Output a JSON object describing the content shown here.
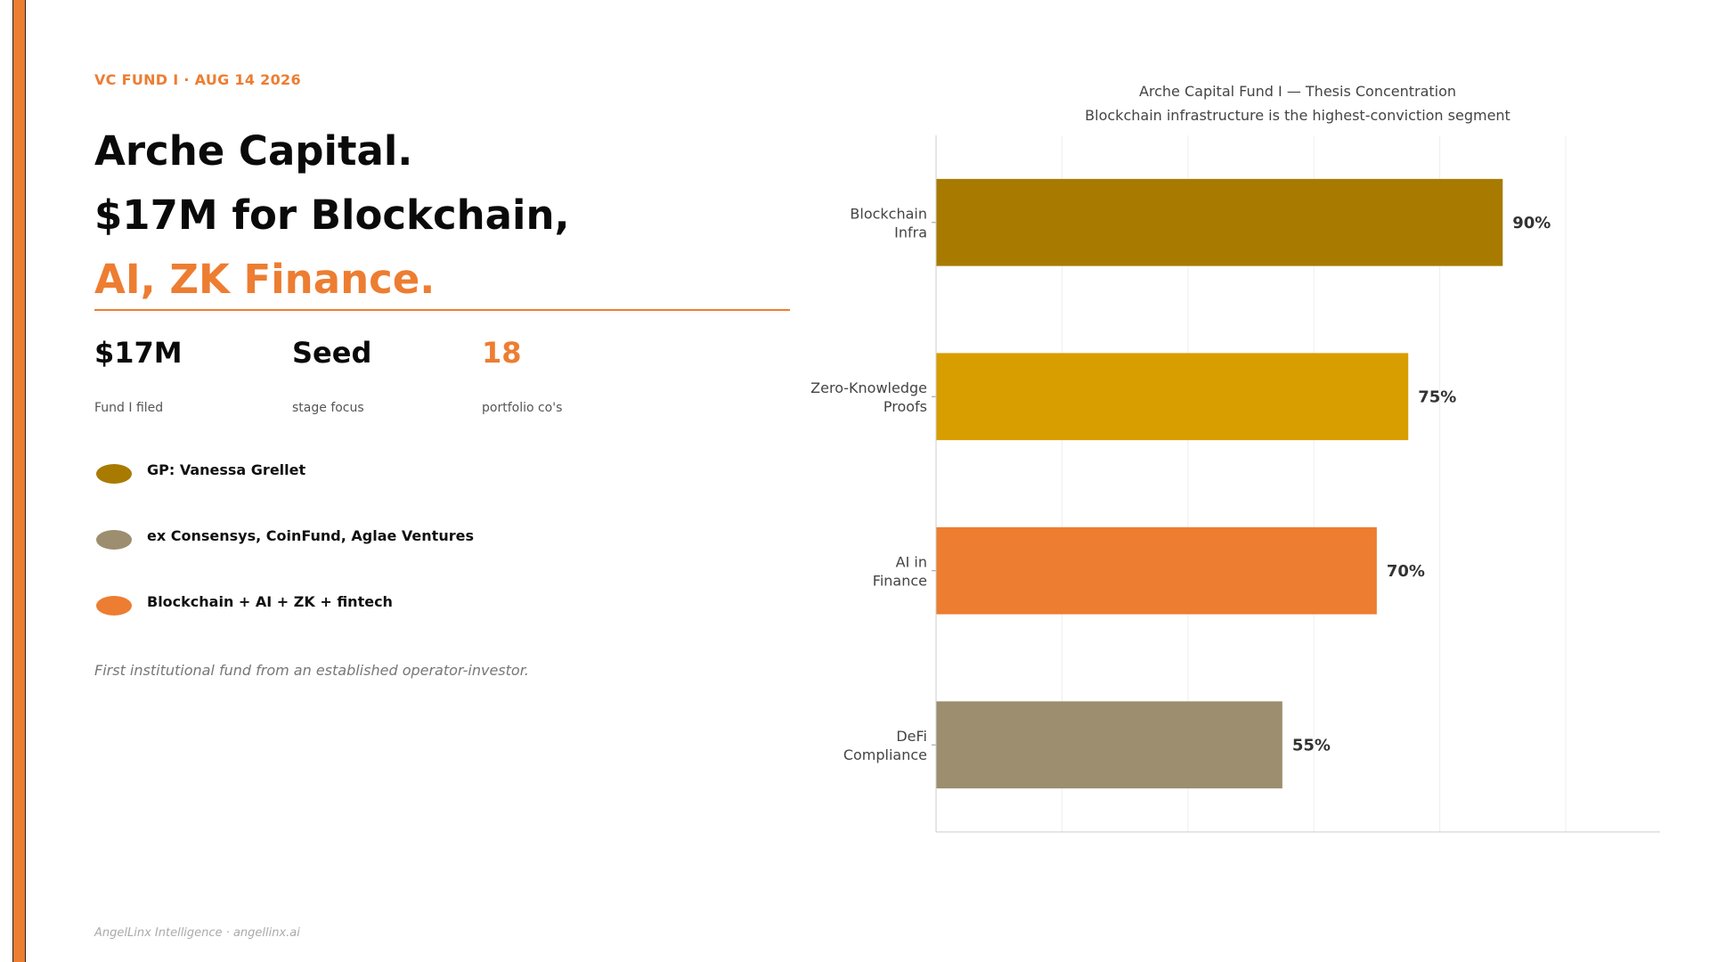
{
  "header": {
    "kicker": "VC FUND I  ·  AUG 14 2026",
    "headline_line1": "Arche Capital.",
    "headline_line2": "$17M for Blockchain,",
    "headline_line3": "AI, ZK Finance."
  },
  "stats": [
    {
      "value": "$17M",
      "label": "Fund I filed"
    },
    {
      "value": "Seed",
      "label": "stage focus"
    },
    {
      "value": "18",
      "label": "portfolio co's"
    }
  ],
  "bullets": [
    {
      "text": "GP: Vanessa Grellet",
      "color": "#A87B00"
    },
    {
      "text": "ex Consensys, CoinFund, Aglae Ventures",
      "color": "#9C8E6E"
    },
    {
      "text": "Blockchain + AI + ZK + fintech",
      "color": "#ED7D31"
    }
  ],
  "note": "First institutional fund from an established operator-investor.",
  "footer": "AngelLinx Intelligence  ·  angellinx.ai",
  "colors": {
    "accent": "#ED7D31",
    "text": "#0a0a0a"
  },
  "chart_data": {
    "type": "bar",
    "orientation": "horizontal",
    "title": "Arche Capital Fund I  —  Thesis Concentration",
    "subtitle": "Blockchain infrastructure is the highest-conviction segment",
    "categories": [
      [
        "Blockchain",
        "Infra"
      ],
      [
        "Zero-Knowledge",
        "Proofs"
      ],
      [
        "AI in",
        "Finance"
      ],
      [
        "DeFi",
        "Compliance"
      ]
    ],
    "values": [
      90,
      75,
      70,
      55
    ],
    "value_labels": [
      "90%",
      "75%",
      "70%",
      "55%"
    ],
    "bar_colors": [
      "#A87B00",
      "#D89E00",
      "#ED7D31",
      "#9C8E6E"
    ],
    "xlim": [
      0,
      115
    ],
    "grid": "vertical",
    "xlabel": "",
    "ylabel": ""
  }
}
